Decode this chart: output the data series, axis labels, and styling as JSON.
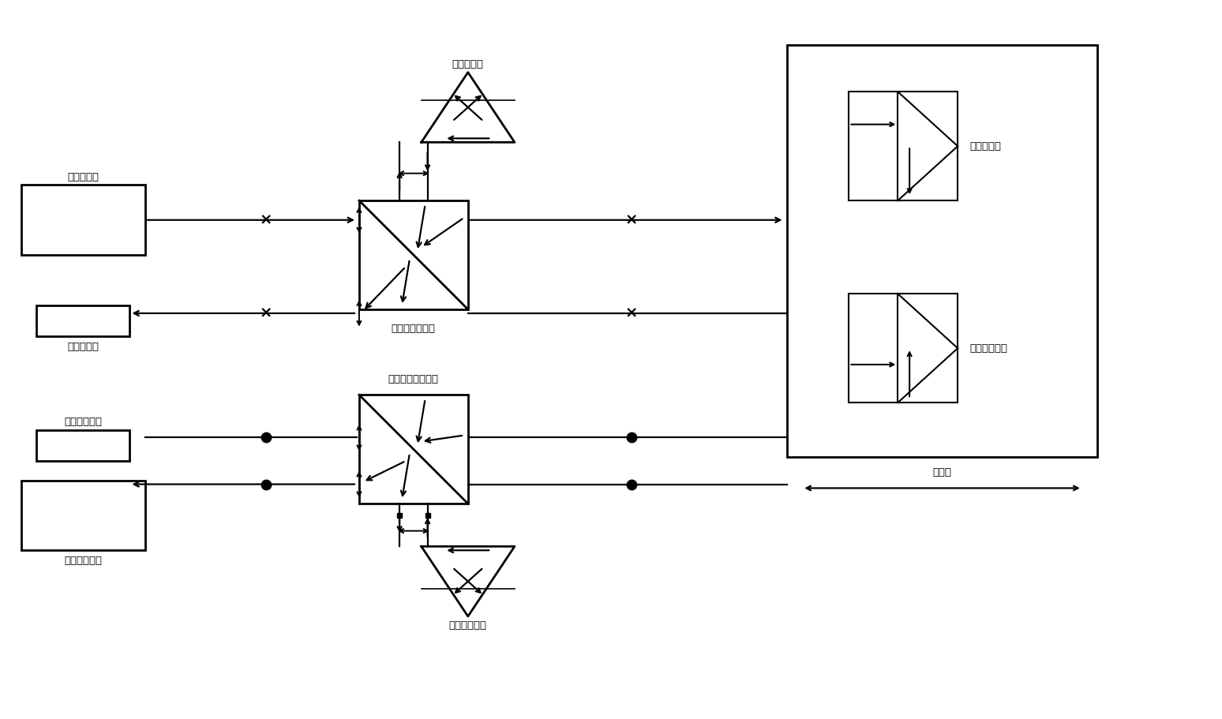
{
  "bg_color": "#ffffff",
  "fig_width": 15.48,
  "fig_height": 9.11,
  "labels": {
    "std_laser": "标准激光器",
    "std_receiver": "标准接收器",
    "std_pbs": "标准偏振分光镜",
    "std_ref": "标准参考镜",
    "std_meas": "标准测量镜",
    "cal_laser": "被校准激光器",
    "cal_receiver": "被校准接收器",
    "cal_pbs": "被校准偏振分光镜",
    "cal_ref": "被校准参考镜",
    "cal_meas": "被校准测量镜",
    "motion_stage": "运动台"
  }
}
